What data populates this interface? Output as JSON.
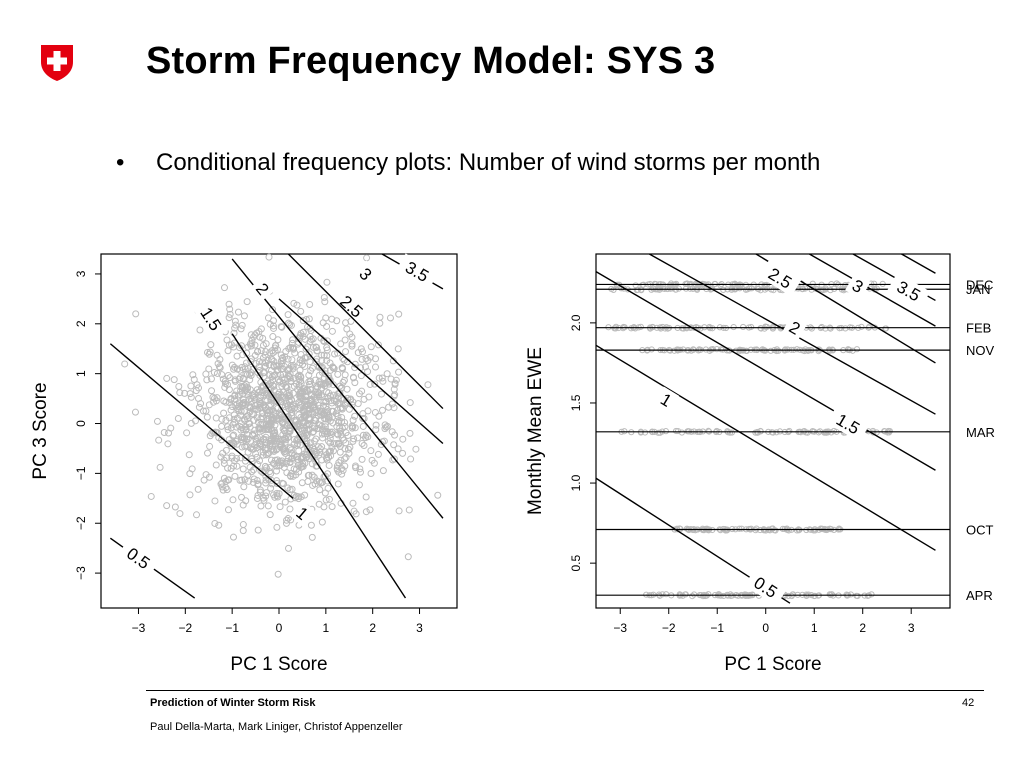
{
  "slide": {
    "title": "Storm Frequency Model: SYS 3",
    "bullet": "Conditional frequency plots: Number of wind storms per month",
    "bullet_marker": "•",
    "logo_icon": "swiss-cross-shield",
    "colors": {
      "logo_red": "#e3000f",
      "points": "#bbbbbb",
      "lines": "#000000"
    }
  },
  "footer": {
    "title": "Prediction of Winter Storm Risk",
    "authors": "Paul Della-Marta, Mark Liniger, Christof Appenzeller",
    "page": "42"
  },
  "chart_data": [
    {
      "type": "scatter",
      "xlabel": "PC 1 Score",
      "ylabel": "PC 3 Score",
      "xlim": [
        -3.8,
        3.8
      ],
      "ylim": [
        -3.7,
        3.4
      ],
      "xticks": [
        -3,
        -2,
        -1,
        0,
        1,
        2,
        3
      ],
      "yticks": [
        -3,
        -2,
        -1,
        0,
        1,
        2,
        3
      ],
      "points_summary": {
        "center_x": 0.2,
        "center_y": 0.2,
        "sd_x": 1.0,
        "sd_y": 0.95,
        "count": 1400
      },
      "contours": [
        {
          "label": "0.5",
          "x": [
            -3.6,
            -1.8
          ],
          "y": [
            -2.3,
            -3.5
          ],
          "label_at": [
            -3.0,
            -2.7
          ]
        },
        {
          "label": "1",
          "x": [
            -3.6,
            0.3
          ],
          "y": [
            1.6,
            -1.5
          ],
          "label_at": [
            0.5,
            -1.8
          ]
        },
        {
          "label": "1.5",
          "x": [
            -1.0,
            2.7
          ],
          "y": [
            1.8,
            -3.5
          ],
          "label_at": [
            -1.45,
            2.1
          ]
        },
        {
          "label": "2",
          "x": [
            -1.0,
            3.5
          ],
          "y": [
            3.3,
            -1.9
          ],
          "label_at": [
            -0.35,
            2.7
          ]
        },
        {
          "label": "2.5",
          "x": [
            0.0,
            3.5
          ],
          "y": [
            2.5,
            -0.4
          ],
          "label_at": [
            1.55,
            2.35
          ]
        },
        {
          "label": "3",
          "x": [
            0.2,
            3.5
          ],
          "y": [
            3.4,
            0.3
          ],
          "label_at": [
            1.85,
            3.0
          ]
        },
        {
          "label": "3.5",
          "x": [
            2.2,
            3.5
          ],
          "y": [
            3.4,
            2.7
          ],
          "label_at": [
            2.95,
            3.05
          ]
        }
      ]
    },
    {
      "type": "scatter",
      "xlabel": "PC 1 Score",
      "ylabel": "Monthly Mean EWE",
      "xlim": [
        -3.5,
        3.8
      ],
      "ylim": [
        0.22,
        2.43
      ],
      "xticks": [
        -3,
        -2,
        -1,
        0,
        1,
        2,
        3
      ],
      "yticks": [
        0.5,
        1.0,
        1.5,
        2.0
      ],
      "months": [
        {
          "label": "DEC",
          "y": 2.24,
          "xrange": [
            -3.3,
            2.5
          ]
        },
        {
          "label": "JAN",
          "y": 2.21,
          "xrange": [
            -3.2,
            2.3
          ]
        },
        {
          "label": "FEB",
          "y": 1.97,
          "xrange": [
            -3.3,
            2.5
          ]
        },
        {
          "label": "NOV",
          "y": 1.83,
          "xrange": [
            -2.6,
            1.9
          ]
        },
        {
          "label": "MAR",
          "y": 1.32,
          "xrange": [
            -3.0,
            2.6
          ]
        },
        {
          "label": "OCT",
          "y": 0.71,
          "xrange": [
            -1.9,
            1.7
          ]
        },
        {
          "label": "APR",
          "y": 0.3,
          "xrange": [
            -2.5,
            2.3
          ]
        }
      ],
      "contours": [
        {
          "label": "0.5",
          "x": [
            -3.5,
            0.5
          ],
          "y": [
            1.03,
            0.25
          ],
          "label_at": [
            0.0,
            0.35
          ]
        },
        {
          "label": "1",
          "x": [
            -3.5,
            3.5
          ],
          "y": [
            1.86,
            0.58
          ],
          "label_at": [
            -2.05,
            1.52
          ]
        },
        {
          "label": "1.5",
          "x": [
            -3.5,
            3.5
          ],
          "y": [
            2.32,
            1.08
          ],
          "label_at": [
            1.7,
            1.37
          ]
        },
        {
          "label": "2",
          "x": [
            -2.4,
            3.5
          ],
          "y": [
            2.43,
            1.43
          ],
          "label_at": [
            0.6,
            1.97
          ]
        },
        {
          "label": "2.5",
          "x": [
            -0.2,
            3.5
          ],
          "y": [
            2.43,
            1.75
          ],
          "label_at": [
            0.3,
            2.28
          ]
        },
        {
          "label": "3",
          "x": [
            0.9,
            3.5
          ],
          "y": [
            2.43,
            1.98
          ],
          "label_at": [
            1.9,
            2.23
          ]
        },
        {
          "label": "3.5",
          "x": [
            1.8,
            3.5
          ],
          "y": [
            2.43,
            2.14
          ],
          "label_at": [
            2.95,
            2.2
          ]
        },
        {
          "label": "",
          "x": [
            2.8,
            3.5
          ],
          "y": [
            2.43,
            2.31
          ],
          "label_at": null
        }
      ]
    }
  ]
}
